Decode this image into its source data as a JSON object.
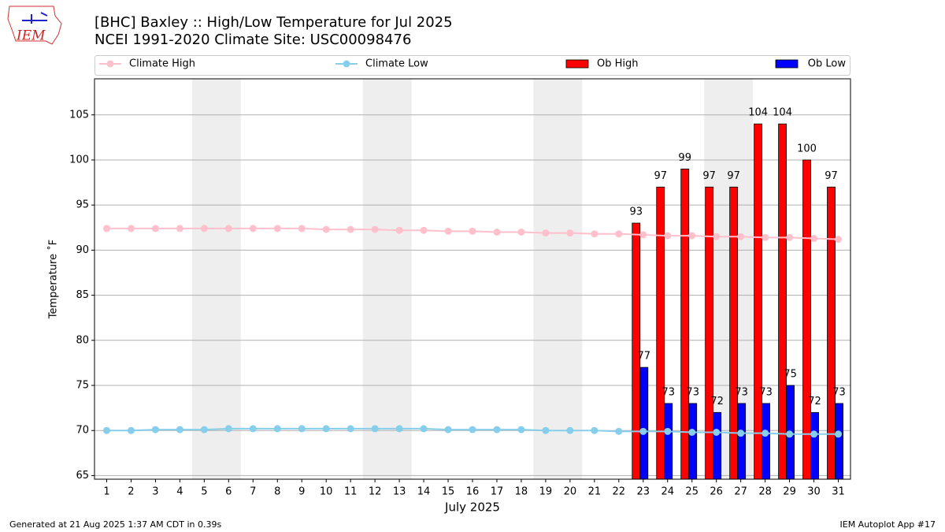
{
  "chart_data": {
    "type": "bar-line",
    "logo_text": "IEM",
    "title": "[BHC] Baxley :: High/Low Temperature for Jul 2025",
    "subtitle": "NCEI 1991-2020 Climate Site: USC00098476",
    "xlabel": "July 2025",
    "ylabel": "Temperature ˚F",
    "footer_left": "Generated at 21 Aug 2025 1:37 AM CDT in 0.39s",
    "footer_right": "IEM Autoplot App #17",
    "x": [
      1,
      2,
      3,
      4,
      5,
      6,
      7,
      8,
      9,
      10,
      11,
      12,
      13,
      14,
      15,
      16,
      17,
      18,
      19,
      20,
      21,
      22,
      23,
      24,
      25,
      26,
      27,
      28,
      29,
      30,
      31
    ],
    "xlim": [
      0.5,
      31.5
    ],
    "xticks": [
      1,
      2,
      3,
      4,
      5,
      6,
      7,
      8,
      9,
      10,
      11,
      12,
      13,
      14,
      15,
      16,
      17,
      18,
      19,
      20,
      21,
      22,
      23,
      24,
      25,
      26,
      27,
      28,
      29,
      30,
      31
    ],
    "ylim": [
      64.6,
      109
    ],
    "yticks": [
      65,
      70,
      75,
      80,
      85,
      90,
      95,
      100,
      105
    ],
    "grid": true,
    "shaded_days": [
      [
        5,
        6
      ],
      [
        12,
        13
      ],
      [
        19,
        20
      ],
      [
        26,
        27
      ]
    ],
    "shade_color": "#eeeeee",
    "series": [
      {
        "name": "Climate High",
        "kind": "line",
        "color": "#ffc0cb",
        "values": [
          92.4,
          92.4,
          92.4,
          92.4,
          92.4,
          92.4,
          92.4,
          92.4,
          92.4,
          92.3,
          92.3,
          92.3,
          92.2,
          92.2,
          92.1,
          92.1,
          92.0,
          92.0,
          91.9,
          91.9,
          91.8,
          91.8,
          91.7,
          91.6,
          91.6,
          91.5,
          91.5,
          91.4,
          91.4,
          91.3,
          91.2
        ]
      },
      {
        "name": "Climate Low",
        "kind": "line",
        "color": "#87ceeb",
        "values": [
          70.0,
          70.0,
          70.1,
          70.1,
          70.1,
          70.2,
          70.2,
          70.2,
          70.2,
          70.2,
          70.2,
          70.2,
          70.2,
          70.2,
          70.1,
          70.1,
          70.1,
          70.1,
          70.0,
          70.0,
          70.0,
          69.9,
          69.9,
          69.9,
          69.8,
          69.8,
          69.7,
          69.7,
          69.6,
          69.6,
          69.6
        ]
      },
      {
        "name": "Ob High",
        "kind": "bar",
        "color": "#ff0000",
        "values": [
          null,
          null,
          null,
          null,
          null,
          null,
          null,
          null,
          null,
          null,
          null,
          null,
          null,
          null,
          null,
          null,
          null,
          null,
          null,
          null,
          null,
          null,
          93,
          97,
          99,
          97,
          97,
          104,
          104,
          100,
          97
        ]
      },
      {
        "name": "Ob Low",
        "kind": "bar",
        "color": "#0000ff",
        "values": [
          null,
          null,
          null,
          null,
          null,
          null,
          null,
          null,
          null,
          null,
          null,
          null,
          null,
          null,
          null,
          null,
          null,
          null,
          null,
          null,
          null,
          null,
          77,
          73,
          73,
          72,
          73,
          73,
          75,
          72,
          73
        ]
      }
    ]
  }
}
